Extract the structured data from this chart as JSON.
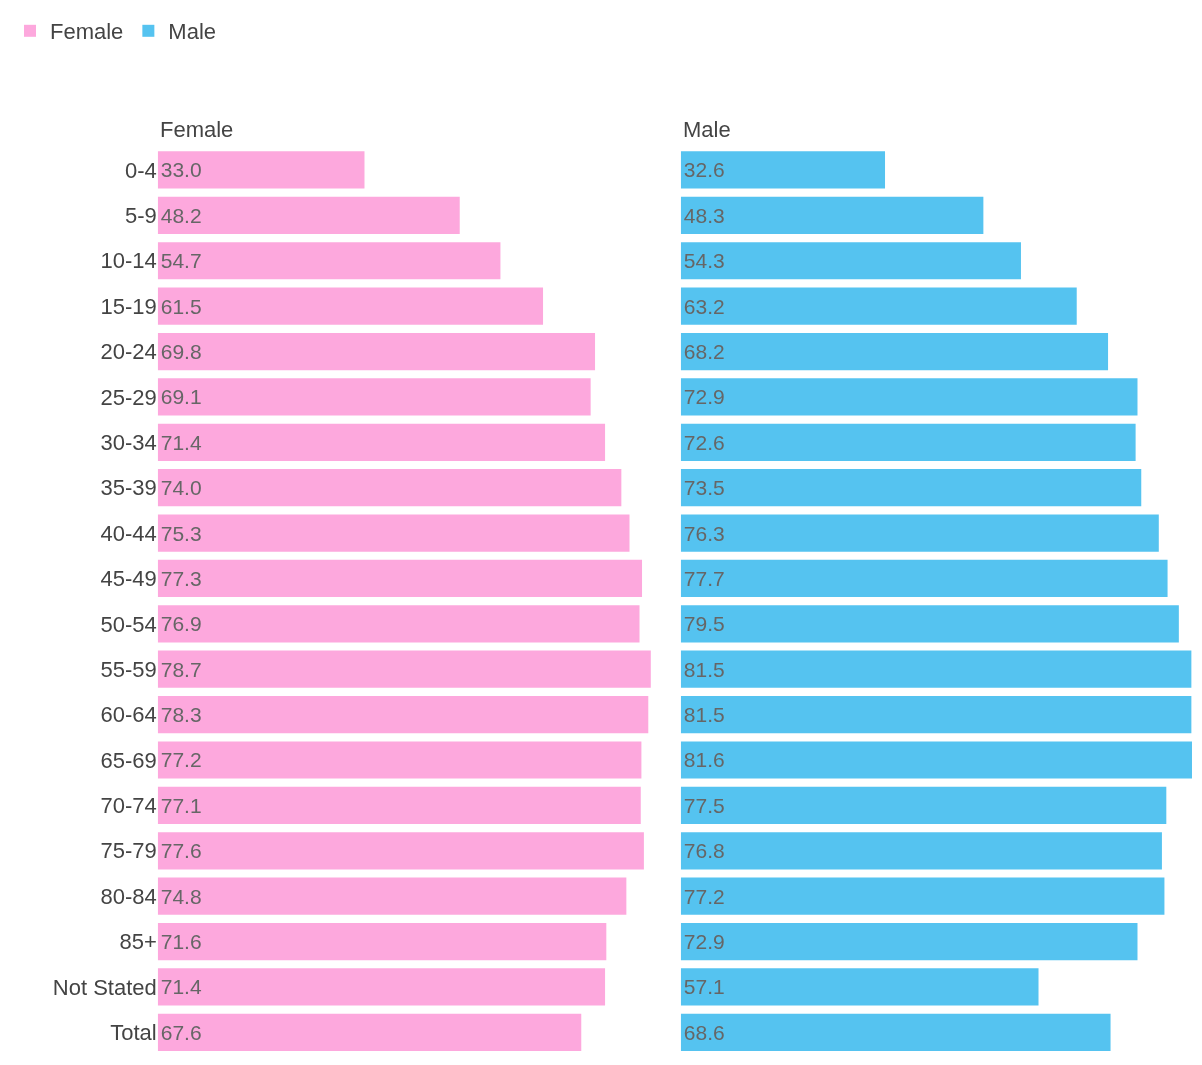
{
  "chart_data": [
    {
      "type": "bar",
      "title": "Female",
      "orientation": "horizontal",
      "legend": "top left",
      "tick_labels": "y",
      "categories": [
        "0-4",
        "5-9",
        "10-14",
        "15-19",
        "20-24",
        "25-29",
        "30-34",
        "35-39",
        "40-44",
        "45-49",
        "50-54",
        "55-59",
        "60-64",
        "65-69",
        "70-74",
        "75-79",
        "80-84",
        "85+",
        "Not Stated",
        "Total"
      ],
      "series": [
        {
          "name": "Female",
          "color": "#fda8dd",
          "values": [
            33.0,
            48.2,
            54.7,
            61.5,
            69.8,
            69.1,
            71.4,
            74.0,
            75.3,
            77.3,
            76.9,
            78.7,
            78.3,
            77.2,
            77.1,
            77.6,
            74.8,
            71.6,
            71.4,
            67.6
          ],
          "value_labels": [
            "33.0",
            "48.2",
            "54.7",
            "61.5",
            "69.8",
            "69.1",
            "71.4",
            "74.0",
            "75.3",
            "77.3",
            "76.9",
            "78.7",
            "78.3",
            "77.2",
            "77.1",
            "77.6",
            "74.8",
            "71.6",
            "71.4",
            "67.6"
          ]
        }
      ]
    },
    {
      "type": "bar",
      "title": "Male",
      "orientation": "horizontal",
      "tick_labels": false,
      "categories": [
        "0-4",
        "5-9",
        "10-14",
        "15-19",
        "20-24",
        "25-29",
        "30-34",
        "35-39",
        "40-44",
        "45-49",
        "50-54",
        "55-59",
        "60-64",
        "65-69",
        "70-74",
        "75-79",
        "80-84",
        "85+",
        "Not Stated",
        "Total"
      ],
      "series": [
        {
          "name": "Male",
          "color": "#55c3f0",
          "values": [
            32.6,
            48.3,
            54.3,
            63.2,
            68.2,
            72.9,
            72.6,
            73.5,
            76.3,
            77.7,
            79.5,
            81.5,
            81.5,
            81.6,
            77.5,
            76.8,
            77.2,
            72.9,
            57.1,
            68.6
          ],
          "value_labels": [
            "32.6",
            "48.3",
            "54.3",
            "63.2",
            "68.2",
            "72.9",
            "72.6",
            "73.5",
            "76.3",
            "77.7",
            "79.5",
            "81.5",
            "81.5",
            "81.6",
            "77.5",
            "76.8",
            "77.2",
            "72.9",
            "57.1",
            "68.6"
          ]
        }
      ]
    }
  ]
}
